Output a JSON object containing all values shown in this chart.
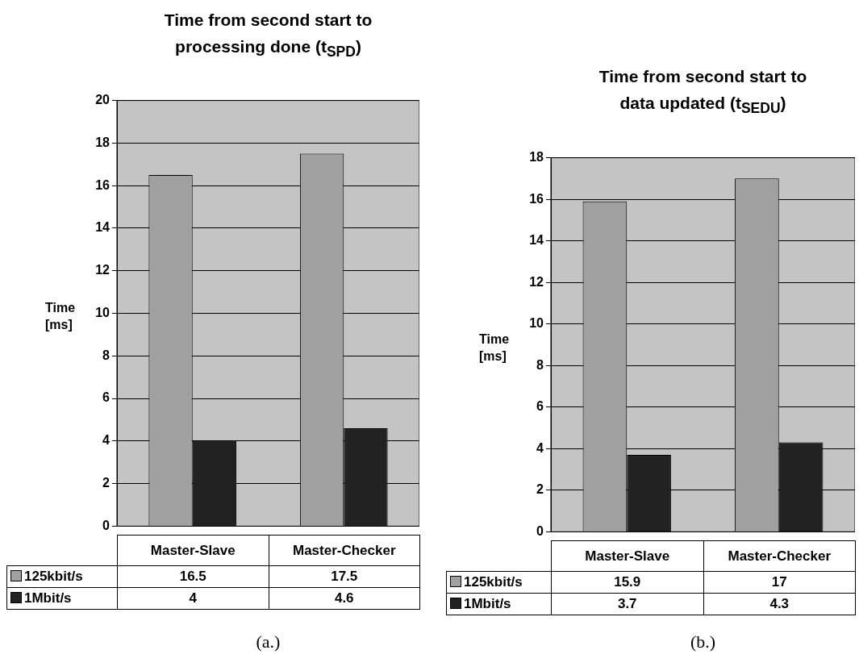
{
  "chart_data": [
    {
      "type": "bar",
      "title": "Time from second start to processing done (t$_{SPD}$)",
      "ylabel": "Time [ms]",
      "categories": [
        "Master-Slave",
        "Master-Checker"
      ],
      "series": [
        {
          "name": "125kbit/s",
          "color": "#a0a0a0",
          "values": [
            16.5,
            17.5
          ]
        },
        {
          "name": "1Mbit/s",
          "color": "#222222",
          "values": [
            4,
            4.6
          ]
        }
      ],
      "ylim": [
        0,
        20
      ],
      "yticks": [
        0,
        2,
        4,
        6,
        8,
        10,
        12,
        14,
        16,
        18,
        20
      ],
      "grid": "y",
      "legend": "bottom left",
      "data_labels": true,
      "annotations": [
        "(a.)"
      ]
    },
    {
      "type": "bar",
      "title": "Time from second start to data updated (t$_{SEDU}$)",
      "ylabel": "Time [ms]",
      "categories": [
        "Master-Slave",
        "Master-Checker"
      ],
      "series": [
        {
          "name": "125kbit/s",
          "color": "#a0a0a0",
          "values": [
            15.9,
            17
          ]
        },
        {
          "name": "1Mbit/s",
          "color": "#222222",
          "values": [
            3.7,
            4.3
          ]
        }
      ],
      "ylim": [
        0,
        18
      ],
      "yticks": [
        0,
        2,
        4,
        6,
        8,
        10,
        12,
        14,
        16,
        18
      ],
      "grid": "y",
      "legend": "bottom left",
      "data_labels": true,
      "annotations": [
        "(b.)"
      ]
    }
  ]
}
